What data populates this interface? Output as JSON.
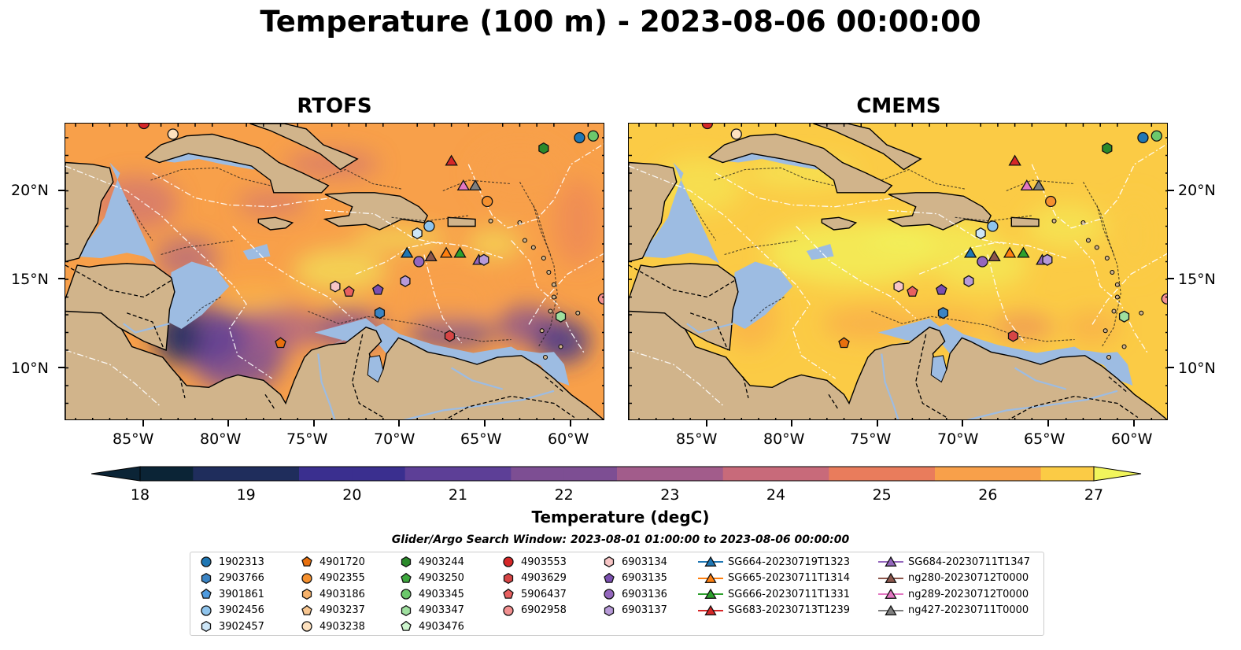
{
  "title": "Temperature (100 m) - 2023-08-06 00:00:00",
  "panels": [
    {
      "title": "RTOFS"
    },
    {
      "title": "CMEMS"
    }
  ],
  "lon_ticks": [
    "85°W",
    "80°W",
    "75°W",
    "70°W",
    "65°W",
    "60°W"
  ],
  "lat_ticks": [
    "20°N",
    "15°N",
    "10°N"
  ],
  "colorbar": {
    "label": "Temperature (degC)",
    "ticks": [
      "18",
      "19",
      "20",
      "21",
      "22",
      "23",
      "24",
      "25",
      "26",
      "27"
    ],
    "range": [
      18,
      27
    ],
    "colors": [
      "#0b2436",
      "#1f2d5c",
      "#3a2f8f",
      "#5d3f97",
      "#7d4e93",
      "#a25c8b",
      "#c86a7a",
      "#e97c5c",
      "#f8a04a",
      "#fbcb45",
      "#f1f55c"
    ]
  },
  "legend_title": "Glider/Argo Search Window: 2023-08-01 01:00:00 to 2023-08-06 00:00:00",
  "legend": [
    {
      "label": "1902313",
      "marker": "circle",
      "color": "#1f77b4"
    },
    {
      "label": "2903766",
      "marker": "hexagon",
      "color": "#3b84c4"
    },
    {
      "label": "3901861",
      "marker": "pentagon",
      "color": "#4e9be0"
    },
    {
      "label": "3902456",
      "marker": "circle",
      "color": "#8fc4ec"
    },
    {
      "label": "3902457",
      "marker": "hexagon",
      "color": "#cde6f7"
    },
    {
      "label": "4901720",
      "marker": "pentagon",
      "color": "#e8700e"
    },
    {
      "label": "4902355",
      "marker": "circle",
      "color": "#f5902e"
    },
    {
      "label": "4903186",
      "marker": "hexagon",
      "color": "#f6b26b"
    },
    {
      "label": "4903237",
      "marker": "pentagon",
      "color": "#f8c690"
    },
    {
      "label": "4903238",
      "marker": "circle",
      "color": "#fde1bf"
    },
    {
      "label": "4903244",
      "marker": "hexagon",
      "color": "#2b8a2b"
    },
    {
      "label": "4903250",
      "marker": "pentagon",
      "color": "#3ea83e"
    },
    {
      "label": "4903345",
      "marker": "circle",
      "color": "#6cc86c"
    },
    {
      "label": "4903347",
      "marker": "hexagon",
      "color": "#9fe09f"
    },
    {
      "label": "4903476",
      "marker": "pentagon",
      "color": "#cdf5cd"
    },
    {
      "label": "4903553",
      "marker": "circle",
      "color": "#d62728"
    },
    {
      "label": "4903629",
      "marker": "hexagon",
      "color": "#d64545"
    },
    {
      "label": "5906437",
      "marker": "pentagon",
      "color": "#e86060"
    },
    {
      "label": "6902958",
      "marker": "circle",
      "color": "#f29090"
    },
    {
      "label": "6903134",
      "marker": "hexagon",
      "color": "#f7c5c5"
    },
    {
      "label": "6903135",
      "marker": "pentagon",
      "color": "#7b4fb0"
    },
    {
      "label": "6903136",
      "marker": "circle",
      "color": "#9467bd"
    },
    {
      "label": "6903137",
      "marker": "hexagon",
      "color": "#b79ad8"
    },
    {
      "label": "SG664-20230719T1323",
      "marker": "triangle",
      "color": "#1f77b4"
    },
    {
      "label": "SG665-20230711T1314",
      "marker": "triangle",
      "color": "#ff7f0e"
    },
    {
      "label": "SG666-20230711T1331",
      "marker": "triangle",
      "color": "#2ca02c"
    },
    {
      "label": "SG683-20230713T1239",
      "marker": "triangle",
      "color": "#d62728"
    },
    {
      "label": "SG684-20230711T1347",
      "marker": "triangle",
      "color": "#9467bd"
    },
    {
      "label": "ng280-20230712T0000",
      "marker": "triangle",
      "color": "#8c564b"
    },
    {
      "label": "ng289-20230712T0000",
      "marker": "triangle",
      "color": "#e377c2"
    },
    {
      "label": "ng427-20230711T0000",
      "marker": "triangle",
      "color": "#7f7f7f"
    }
  ],
  "markers": [
    {
      "name": "1902313",
      "lon": -59.5,
      "lat": 23.0,
      "marker": "circle",
      "color": "#1f77b4"
    },
    {
      "name": "4903345",
      "lon": -58.7,
      "lat": 23.1,
      "marker": "circle",
      "color": "#6cc86c"
    },
    {
      "name": "4903244",
      "lon": -61.6,
      "lat": 22.4,
      "marker": "hexagon",
      "color": "#2b8a2b"
    },
    {
      "name": "4903553",
      "lon": -85.0,
      "lat": 23.8,
      "marker": "circle",
      "color": "#d62728"
    },
    {
      "name": "4903238",
      "lon": -83.3,
      "lat": 23.2,
      "marker": "circle",
      "color": "#fde1bf"
    },
    {
      "name": "SG683-20230713T1239",
      "lon": -67.0,
      "lat": 21.7,
      "marker": "triangle",
      "color": "#d62728"
    },
    {
      "name": "ng289-20230712T0000",
      "lon": -66.3,
      "lat": 20.3,
      "marker": "triangle",
      "color": "#e377c2"
    },
    {
      "name": "ng427-20230711T0000",
      "lon": -65.6,
      "lat": 20.3,
      "marker": "triangle",
      "color": "#7f7f7f"
    },
    {
      "name": "4902355",
      "lon": -64.9,
      "lat": 19.4,
      "marker": "circle",
      "color": "#f5902e"
    },
    {
      "name": "3902456",
      "lon": -68.3,
      "lat": 18.0,
      "marker": "circle",
      "color": "#8fc4ec"
    },
    {
      "name": "3902457",
      "lon": -69.0,
      "lat": 17.6,
      "marker": "hexagon",
      "color": "#cde6f7"
    },
    {
      "name": "SG664-20230719T1323",
      "lon": -69.6,
      "lat": 16.5,
      "marker": "triangle",
      "color": "#1f77b4"
    },
    {
      "name": "ng280-20230712T0000",
      "lon": -68.2,
      "lat": 16.3,
      "marker": "triangle",
      "color": "#8c564b"
    },
    {
      "name": "SG665-20230711T1314",
      "lon": -67.3,
      "lat": 16.5,
      "marker": "triangle",
      "color": "#ff7f0e"
    },
    {
      "name": "SG666-20230711T1331",
      "lon": -66.5,
      "lat": 16.5,
      "marker": "triangle",
      "color": "#2ca02c"
    },
    {
      "name": "6903136",
      "lon": -68.9,
      "lat": 16.0,
      "marker": "circle",
      "color": "#9467bd"
    },
    {
      "name": "SG684-20230711T1347",
      "lon": -65.4,
      "lat": 16.1,
      "marker": "triangle",
      "color": "#9467bd"
    },
    {
      "name": "6903137",
      "lon": -65.1,
      "lat": 16.1,
      "marker": "hexagon",
      "color": "#b79ad8"
    },
    {
      "name": "6903137b",
      "lon": -69.7,
      "lat": 14.9,
      "marker": "hexagon",
      "color": "#b79ad8"
    },
    {
      "name": "6903134",
      "lon": -73.8,
      "lat": 14.6,
      "marker": "hexagon",
      "color": "#f7c5c5"
    },
    {
      "name": "5906437",
      "lon": -73.0,
      "lat": 14.3,
      "marker": "pentagon",
      "color": "#e86060"
    },
    {
      "name": "6903135",
      "lon": -71.3,
      "lat": 14.4,
      "marker": "pentagon",
      "color": "#7b4fb0"
    },
    {
      "name": "2903766",
      "lon": -71.2,
      "lat": 13.1,
      "marker": "hexagon",
      "color": "#3b84c4"
    },
    {
      "name": "4903347",
      "lon": -60.6,
      "lat": 12.9,
      "marker": "hexagon",
      "color": "#9fe09f"
    },
    {
      "name": "6902958",
      "lon": -58.1,
      "lat": 13.9,
      "marker": "circle",
      "color": "#f29090"
    },
    {
      "name": "4903629",
      "lon": -67.1,
      "lat": 11.8,
      "marker": "hexagon",
      "color": "#d64545"
    },
    {
      "name": "4901720",
      "lon": -77.0,
      "lat": 11.4,
      "marker": "pentagon",
      "color": "#e8700e"
    }
  ]
}
